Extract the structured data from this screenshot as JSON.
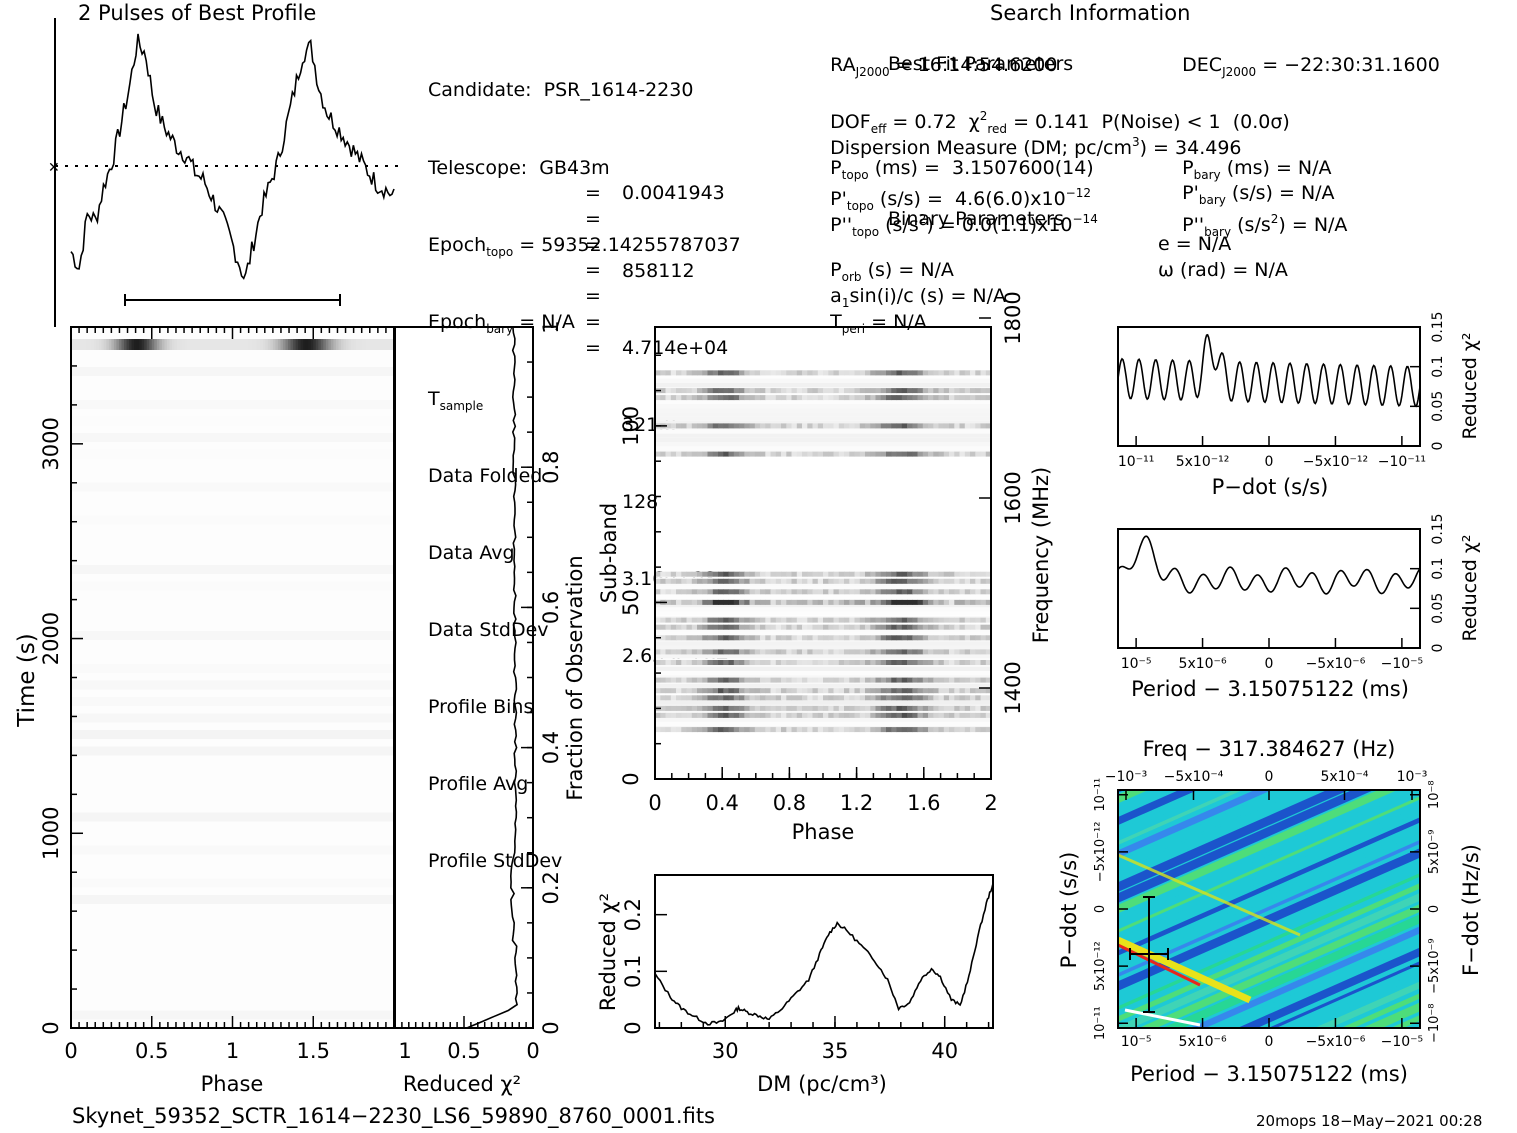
{
  "profile_title": "2 Pulses of Best Profile",
  "search_title": "Search Information",
  "best_fit_title": "Best Fit Parameters",
  "binary_title": "Binary Parameters",
  "info_left": [
    {
      "label": "Candidate:",
      "value": "PSR_1614-2230"
    },
    {
      "label": "Telescope:",
      "value": "GB43m"
    },
    {
      "label": "Epoch",
      "sub": "topo",
      "value": "= 59352.14255787037"
    },
    {
      "label": "Epoch",
      "sub": "bary",
      "value": "= N/A"
    },
    {
      "label": "T",
      "sub": "sample",
      "value": "0.0041943"
    },
    {
      "label": "Data Folded",
      "value": "858112"
    },
    {
      "label": "Data Avg",
      "value": "4.714e+04"
    },
    {
      "label": "Data StdDev",
      "value": "321.8"
    },
    {
      "label": "Profile Bins",
      "value": "128"
    },
    {
      "label": "Profile Avg",
      "value": "3.16e+08"
    },
    {
      "label": "Profile StdDev",
      "value": "2.635e+04"
    }
  ],
  "info_right": {
    "ra": "RA",
    "ra_sub": "J2000",
    "ra_val": "= 16:14:54.6200",
    "dec": "DEC",
    "dec_sub": "J2000",
    "dec_val": "= −22:30:31.1600",
    "dof": "DOF",
    "dof_sub": "eff",
    "dof_val": "= 0.72",
    "chi": "χ",
    "chi_sup": "2",
    "chi_sub": "red",
    "chi_val": "= 0.141",
    "pnoise": "P(Noise) < 1",
    "sigma": "(0.0σ)",
    "dm_text": "Dispersion Measure (DM; pc/cm",
    "dm_sup": "3",
    "dm_val": ") = 34.496",
    "ptopo": "P",
    "ptopo_sub": "topo",
    "ptopo_val": "(ms) =  3.1507600(14)",
    "pbary_val": "(ms) = N/A",
    "pdtopo": "P'",
    "pdtopo_val": "(s/s) =  4.6(6.0)x10",
    "pdtopo_exp": "−12",
    "pdbary_val": "(s/s) = N/A",
    "pddtopo": "P''",
    "pddtopo_val": "(s/s",
    "pddtopo_sup": "2",
    "pddtopo_val2": ") = 0.0(1.1)x10",
    "pddtopo_exp": "−14",
    "pddbary_val": ") = N/A",
    "porb": "P",
    "porb_sub": "orb",
    "porb_val": "(s) = N/A",
    "asini": "a",
    "asini_sub": "1",
    "asini_val": "sin(i)/c (s) = N/A",
    "tperi": "T",
    "tperi_sub": "peri",
    "tperi_val": "= N/A",
    "ecc": "e = N/A",
    "omega": "ω (rad) = N/A",
    "bary_sub": "bary"
  },
  "footer_file": "Skynet_59352_SCTR_1614−2230_LS6_59890_8760_0001.fits",
  "footer_stamp": "20mops 18−May−2021 00:28",
  "chart_data": [
    {
      "type": "line",
      "name": "pulse-profile",
      "title": "2 Pulses of Best Profile",
      "x_range": [
        0,
        2
      ],
      "note_y": "normalized profile",
      "values": [
        0.12,
        0.05,
        0.28,
        0.25,
        0.4,
        0.5,
        0.65,
        0.8,
        1.0,
        0.95,
        0.75,
        0.66,
        0.6,
        0.55,
        0.52,
        0.45,
        0.42,
        0.35,
        0.28,
        0.2,
        0.1,
        0.0,
        0.15,
        0.3,
        0.4,
        0.5,
        0.65,
        0.8,
        0.95,
        0.98,
        0.8,
        0.7,
        0.65,
        0.6,
        0.55,
        0.5,
        0.45,
        0.4,
        0.38,
        0.35
      ]
    },
    {
      "type": "heatmap",
      "name": "time-phase",
      "xlabel": "Phase",
      "ylabel": "Time (s)",
      "x_ticks": [
        "0",
        "0.5",
        "1",
        "1.5"
      ],
      "y_ticks": [
        "0",
        "1000",
        "2000",
        "3000"
      ],
      "x_range": [
        0,
        2
      ],
      "y_range": [
        0,
        3600
      ]
    },
    {
      "type": "line",
      "name": "reduced-chi2-vs-fraction",
      "xlabel": "Reduced χ²",
      "ylabel": "Fraction of Observation",
      "x_ticks": [
        "1",
        "0.5",
        "0"
      ],
      "y_ticks": [
        "0",
        "0.2",
        "0.4",
        "0.6",
        "0.8",
        "1"
      ]
    },
    {
      "type": "heatmap",
      "name": "subband-phase",
      "xlabel": "Phase",
      "ylabel": "Sub-band",
      "y2label": "Frequency (MHz)",
      "x_ticks": [
        "0",
        "0.4",
        "0.8",
        "1.2",
        "1.6",
        "2"
      ],
      "y_ticks": [
        "0",
        "50",
        "100"
      ],
      "y2_ticks": [
        "1400",
        "1600",
        "1800"
      ],
      "x_range": [
        0,
        2
      ],
      "y_range": [
        0,
        128
      ],
      "active_bands": [
        14,
        18,
        20,
        23,
        25,
        28,
        33,
        36,
        40,
        43,
        45,
        50,
        53,
        56,
        58,
        92,
        100,
        108,
        110,
        115
      ]
    },
    {
      "type": "line",
      "name": "dm-curve",
      "xlabel": "DM (pc/cm³)",
      "ylabel": "Reduced χ²",
      "x_ticks": [
        "30",
        "35",
        "40"
      ],
      "y_ticks": [
        "0",
        "0.1",
        "0.2"
      ],
      "xlim": [
        26.8,
        42.2
      ],
      "ylim": [
        0,
        0.27
      ],
      "x": [
        26.8,
        27.5,
        28.0,
        28.6,
        29.2,
        29.8,
        30.3,
        30.6,
        31.0,
        31.5,
        32.0,
        32.6,
        33.2,
        33.8,
        34.3,
        34.7,
        35.1,
        35.6,
        36.2,
        36.8,
        37.4,
        37.9,
        38.4,
        38.9,
        39.4,
        39.8,
        40.3,
        40.7,
        41.1,
        41.5,
        41.9,
        42.2
      ],
      "y": [
        0.095,
        0.055,
        0.035,
        0.02,
        0.008,
        0.01,
        0.025,
        0.035,
        0.028,
        0.022,
        0.015,
        0.035,
        0.06,
        0.085,
        0.13,
        0.165,
        0.185,
        0.17,
        0.145,
        0.12,
        0.085,
        0.035,
        0.045,
        0.085,
        0.105,
        0.09,
        0.05,
        0.04,
        0.09,
        0.16,
        0.22,
        0.255
      ]
    },
    {
      "type": "line",
      "name": "pdot-curve",
      "xlabel": "P−dot (s/s)",
      "ylabel": "Reduced χ²",
      "x_ticks": [
        "10⁻¹¹",
        "5x10⁻¹²",
        "0",
        "−5x10⁻¹²",
        "−10⁻¹¹"
      ],
      "y_ticks": [
        "0",
        "0.05",
        "0.1",
        "0.15"
      ],
      "ylim": [
        0,
        0.15
      ]
    },
    {
      "type": "line",
      "name": "period-curve",
      "xlabel": "Period − 3.15075122 (ms)",
      "ylabel": "Reduced χ²",
      "x_ticks": [
        "10⁻⁵",
        "5x10⁻⁶",
        "0",
        "−5x10⁻⁶",
        "−10⁻⁵"
      ],
      "y_ticks": [
        "0",
        "0.05",
        "0.1",
        "0.15"
      ],
      "ylim": [
        0,
        0.15
      ]
    },
    {
      "type": "heatmap",
      "name": "p-pdot-plane",
      "title": "Freq − 317.384627 (Hz)",
      "xlabel": "Period − 3.15075122 (ms)",
      "ylabel": "P−dot (s/s)",
      "y2label": "F−dot (Hz/s)",
      "x_ticks": [
        "10⁻⁵",
        "5x10⁻⁶",
        "0",
        "−5x10⁻⁶",
        "−10⁻⁵"
      ],
      "top_ticks": [
        "−10⁻³",
        "−5x10⁻⁴",
        "0",
        "5x10⁻⁴",
        "10⁻³"
      ],
      "y_ticks": [
        "10⁻¹¹",
        "5x10⁻¹²",
        "0",
        "−5x10⁻¹²",
        "10⁻¹¹"
      ],
      "y2_ticks": [
        "−10⁻⁸",
        "−5x10⁻⁹",
        "0",
        "5x10⁻⁹",
        "10⁻⁸"
      ]
    }
  ]
}
